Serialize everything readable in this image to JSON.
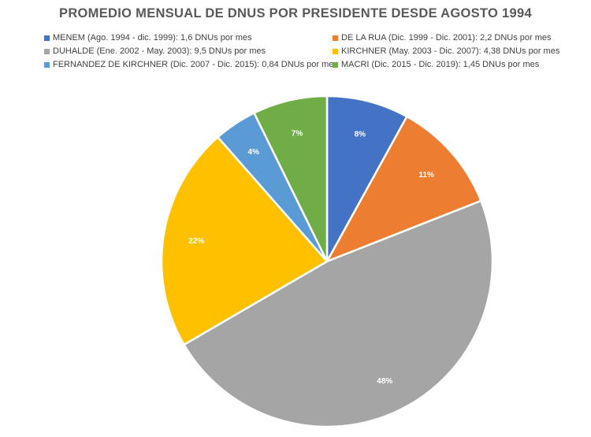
{
  "chart_data": {
    "type": "pie",
    "title": "PROMEDIO MENSUAL DE DNUS POR PRESIDENTE DESDE AGOSTO 1994",
    "legend_position": "top",
    "slices": [
      {
        "name": "MENEM (Ago. 1994 - dic. 1999): 1,6 DNUs por mes",
        "value": 1.6,
        "label": "8%",
        "color": "#4472C4"
      },
      {
        "name": "DE LA RUA (Dic. 1999 - Dic. 2001): 2,2 DNUs por mes",
        "value": 2.2,
        "label": "11%",
        "color": "#ED7D31"
      },
      {
        "name": "DUHALDE (Ene. 2002 - May. 2003): 9,5 DNUs por mes",
        "value": 9.5,
        "label": "48%",
        "color": "#A5A5A5"
      },
      {
        "name": "KIRCHNER (May. 2003 - Dic. 2007): 4,38 DNUs por mes",
        "value": 4.38,
        "label": "22%",
        "color": "#FFC000"
      },
      {
        "name": "FERNANDEZ DE KIRCHNER (Dic. 2007 - Dic. 2015): 0,84 DNUs por mes",
        "value": 0.84,
        "label": "4%",
        "color": "#5B9BD5"
      },
      {
        "name": "MACRI (Dic. 2015 - Dic. 2019): 1,45 DNUs por mes",
        "value": 1.45,
        "label": "7%",
        "color": "#70AD47"
      }
    ]
  }
}
